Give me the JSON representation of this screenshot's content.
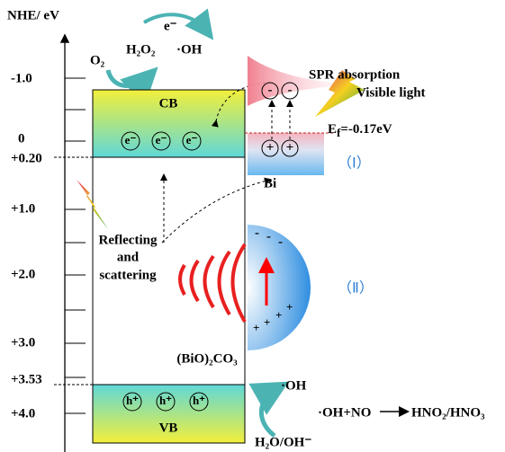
{
  "axis": {
    "label": "NHE/ eV",
    "ticks": [
      "-1.0",
      "0",
      "+0.20",
      "+1.0",
      "+2.0",
      "+3.0",
      "+3.53",
      "+4.0"
    ]
  },
  "reaction_top": {
    "electron": "e⁻",
    "oxygen": "O₂",
    "peroxide": "H₂O₂",
    "radical": "·OH"
  },
  "cb": {
    "label": "CB",
    "electrons": [
      "e⁻",
      "e⁻",
      "e⁻"
    ]
  },
  "vb": {
    "label": "VB",
    "holes": [
      "h⁺",
      "h⁺",
      "h⁺"
    ]
  },
  "bi": {
    "label": "Bi",
    "spr": "SPR absorption",
    "light": "Visible light",
    "minus": [
      "-",
      "-"
    ],
    "plus": [
      "+",
      "+"
    ],
    "fermi": {
      "symbol": "E",
      "subscript": "f",
      "value": "=-0.17eV"
    },
    "region": "（Ⅰ）"
  },
  "hemisphere": {
    "minus": [
      "-",
      "-",
      "-"
    ],
    "plus": [
      "+",
      "+",
      "+",
      "+"
    ],
    "region": "（Ⅱ）"
  },
  "scatter": {
    "lines": [
      "Reflecting",
      "and",
      "scattering"
    ]
  },
  "material": "(BiO)₂CO₃",
  "reaction_bottom": {
    "radical": "·OH",
    "reaction": "·OH+NO",
    "product": "HNO₂/HNO₃",
    "source": "H₂O/OH⁻"
  }
}
